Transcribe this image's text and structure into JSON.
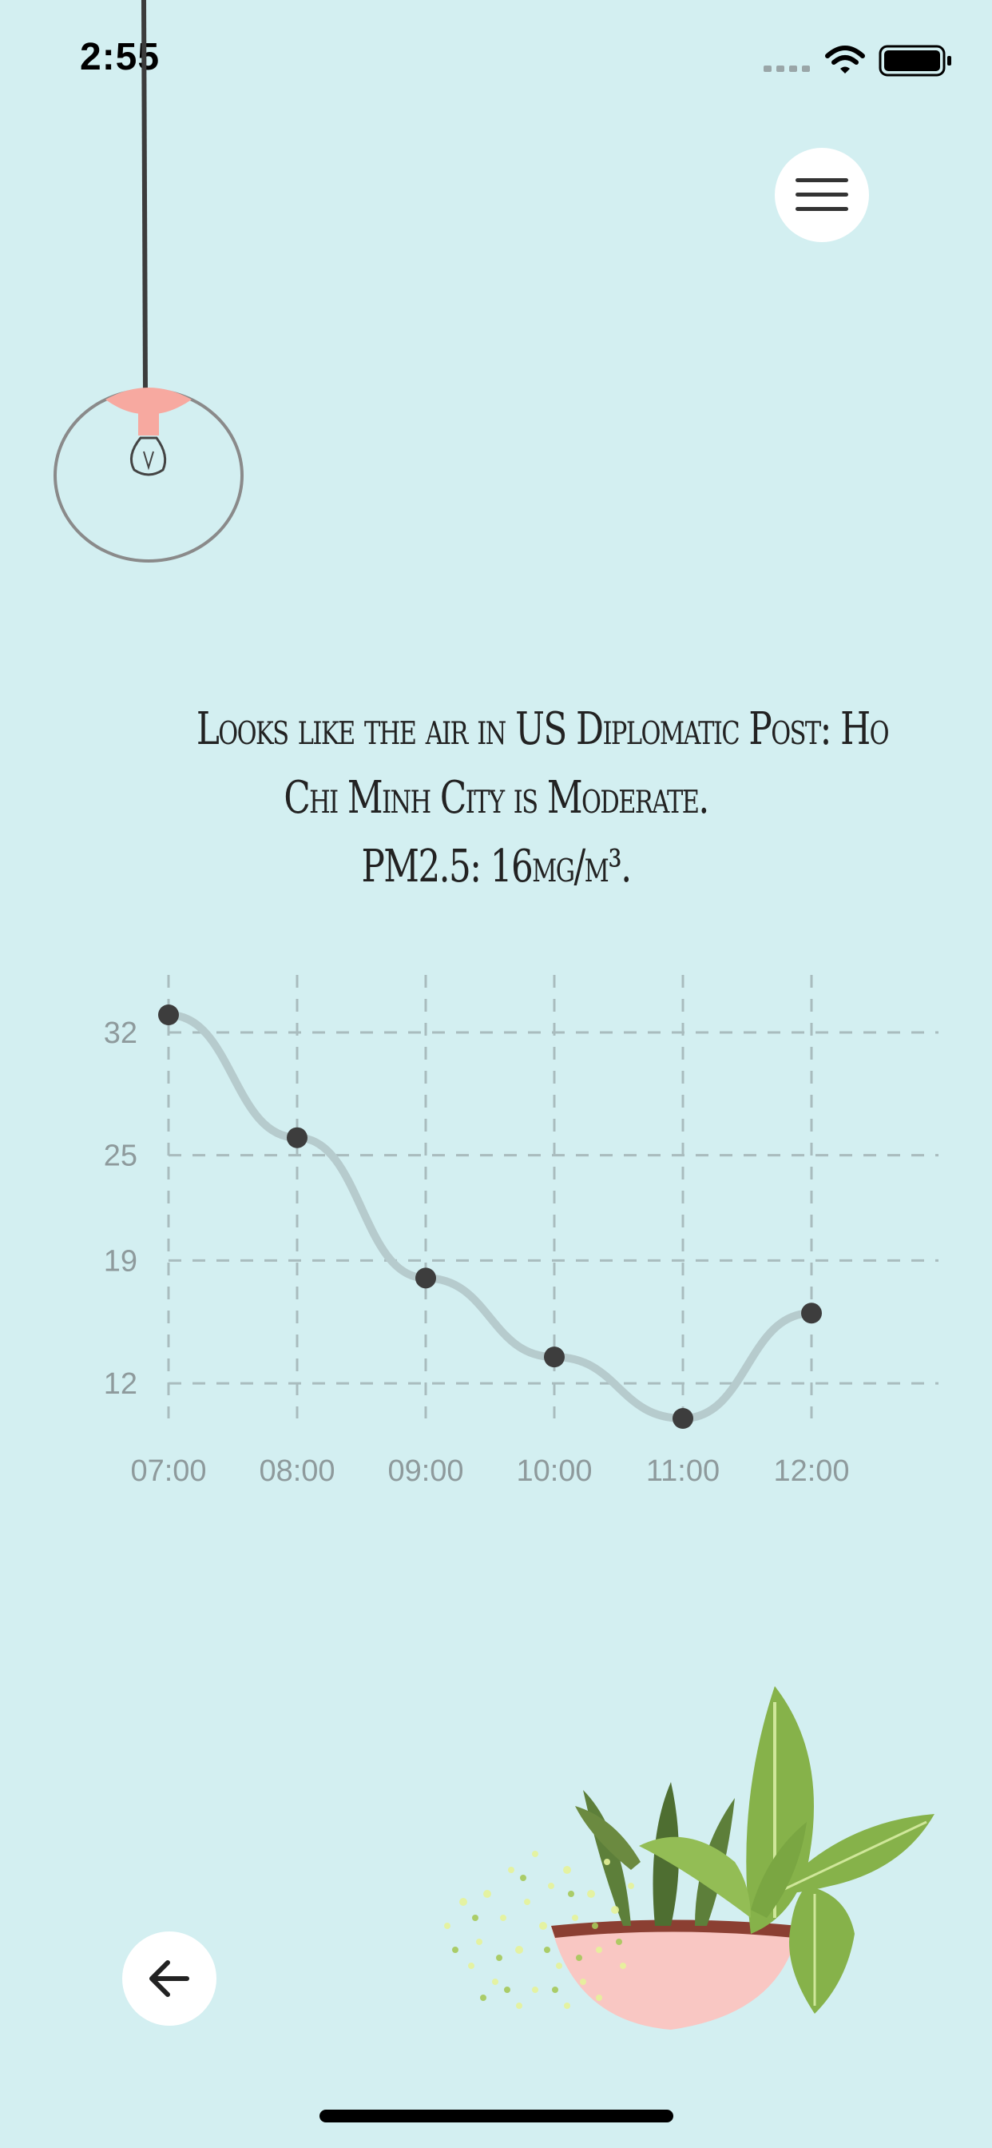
{
  "status_bar": {
    "time": "2:55",
    "icons": [
      "signal-icon",
      "wifi-icon",
      "battery-icon"
    ]
  },
  "header": {
    "menu_icon": "hamburger-menu-icon"
  },
  "headline": {
    "line1": "Looks like the air in US Diplomatic Post: Ho",
    "line2": "Chi Minh City is Moderate.",
    "line3": "PM2.5: 16μg/m³."
  },
  "chart_data": {
    "type": "line",
    "categories": [
      "07:00",
      "08:00",
      "09:00",
      "10:00",
      "11:00",
      "12:00"
    ],
    "values": [
      33,
      26,
      18,
      13.5,
      10,
      16
    ],
    "y_ticks": [
      12,
      19,
      25,
      32
    ],
    "ylim": [
      10,
      33
    ],
    "grid": true,
    "colors": {
      "line": "#b6cbcd",
      "point": "#3d3d3d",
      "grid": "#a9bcbe"
    }
  },
  "footer": {
    "back_icon": "arrow-left-icon"
  },
  "colors": {
    "background": "#d3eff1",
    "lamp_shade": "#f7a9a0",
    "pot": "#f9c7c3",
    "leaf": "#7aa642"
  }
}
